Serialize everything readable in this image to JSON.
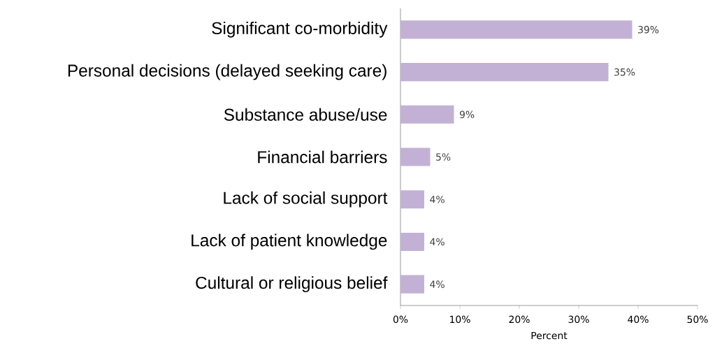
{
  "chart_data": {
    "type": "bar",
    "orientation": "horizontal",
    "xlabel": "Percent",
    "categories": [
      "Significant co-morbidity",
      "Personal decisions (delayed seeking care)",
      "Substance abuse/use",
      "Financial barriers",
      "Lack of social support",
      "Lack of patient knowledge",
      "Cultural or religious belief"
    ],
    "values": [
      39,
      35,
      9,
      5,
      4,
      4,
      4
    ],
    "value_labels": [
      "39%",
      "35%",
      "9%",
      "5%",
      "4%",
      "4%",
      "4%"
    ],
    "color": "#c3b1d5",
    "xlim": [
      0,
      50
    ],
    "xticks": [
      {
        "value": 0,
        "label": "0%"
      },
      {
        "value": 10,
        "label": "10%"
      },
      {
        "value": 20,
        "label": "20%"
      },
      {
        "value": 30,
        "label": "30%"
      },
      {
        "value": 40,
        "label": "40%"
      },
      {
        "value": 50,
        "label": "50%"
      }
    ],
    "grid": false
  }
}
